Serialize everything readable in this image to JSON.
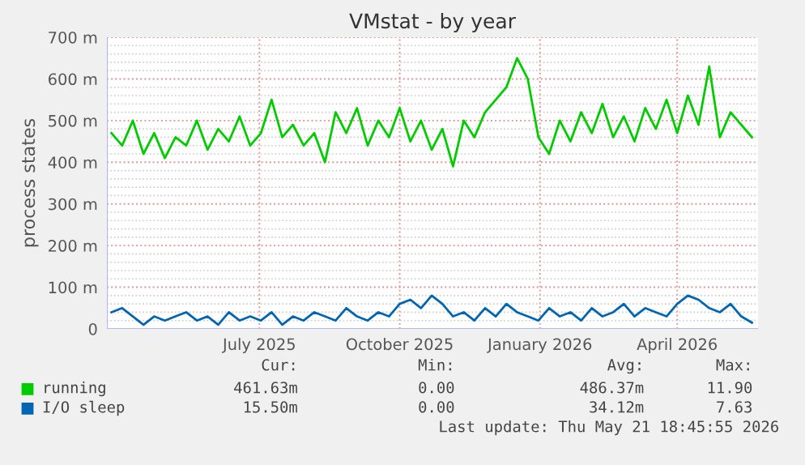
{
  "chart_data": {
    "type": "line",
    "title": "VMstat - by year",
    "ylabel": "process states",
    "xlim": [
      "2025-03-23",
      "2026-05-24"
    ],
    "xticks": [
      {
        "value": "2025-07-01",
        "label": "July 2025"
      },
      {
        "value": "2025-10-01",
        "label": "October 2025"
      },
      {
        "value": "2026-01-01",
        "label": "January 2026"
      },
      {
        "value": "2026-04-01",
        "label": "April 2026"
      }
    ],
    "ylim": [
      0,
      700
    ],
    "yticks": [
      0,
      {
        "value": 100,
        "label": "100 m"
      },
      {
        "value": 200,
        "label": "200 m"
      },
      {
        "value": 300,
        "label": "300 m"
      },
      {
        "value": 400,
        "label": "400 m"
      },
      {
        "value": 500,
        "label": "500 m"
      },
      {
        "value": 600,
        "label": "600 m"
      },
      {
        "value": 700,
        "label": "700 m"
      }
    ],
    "grid": true,
    "legend": "bottom",
    "marker": "none",
    "line_style": "solid",
    "x": [
      "2025-03-26",
      "2025-04-02",
      "2025-04-09",
      "2025-04-16",
      "2025-04-23",
      "2025-04-30",
      "2025-05-07",
      "2025-05-14",
      "2025-05-21",
      "2025-05-28",
      "2025-06-04",
      "2025-06-11",
      "2025-06-18",
      "2025-06-25",
      "2025-07-02",
      "2025-07-09",
      "2025-07-16",
      "2025-07-23",
      "2025-07-30",
      "2025-08-06",
      "2025-08-13",
      "2025-08-20",
      "2025-08-27",
      "2025-09-03",
      "2025-09-10",
      "2025-09-17",
      "2025-09-24",
      "2025-10-01",
      "2025-10-08",
      "2025-10-15",
      "2025-10-22",
      "2025-10-29",
      "2025-11-05",
      "2025-11-12",
      "2025-11-19",
      "2025-11-26",
      "2025-12-03",
      "2025-12-10",
      "2025-12-17",
      "2025-12-24",
      "2025-12-31",
      "2026-01-07",
      "2026-01-14",
      "2026-01-21",
      "2026-01-28",
      "2026-02-04",
      "2026-02-11",
      "2026-02-18",
      "2026-02-25",
      "2026-03-04",
      "2026-03-11",
      "2026-03-18",
      "2026-03-25",
      "2026-04-01",
      "2026-04-08",
      "2026-04-15",
      "2026-04-22",
      "2026-04-29",
      "2026-05-06",
      "2026-05-13",
      "2026-05-20"
    ],
    "series": [
      {
        "name": "running",
        "color": "#00cc00",
        "values": [
          470,
          440,
          500,
          420,
          470,
          410,
          460,
          440,
          500,
          430,
          480,
          450,
          510,
          440,
          470,
          550,
          460,
          490,
          440,
          470,
          400,
          520,
          470,
          530,
          440,
          500,
          460,
          530,
          450,
          500,
          430,
          480,
          390,
          500,
          460,
          520,
          550,
          580,
          650,
          600,
          460,
          420,
          500,
          450,
          520,
          470,
          540,
          460,
          510,
          450,
          530,
          480,
          550,
          470,
          560,
          490,
          630,
          460,
          520,
          490,
          460
        ]
      },
      {
        "name": "I/O sleep",
        "color": "#0066b3",
        "values": [
          40,
          50,
          30,
          10,
          30,
          20,
          30,
          40,
          20,
          30,
          10,
          40,
          20,
          30,
          20,
          40,
          10,
          30,
          20,
          40,
          30,
          20,
          50,
          30,
          20,
          40,
          30,
          60,
          70,
          50,
          80,
          60,
          30,
          40,
          20,
          50,
          30,
          60,
          40,
          30,
          20,
          50,
          30,
          40,
          20,
          50,
          30,
          40,
          60,
          30,
          50,
          40,
          30,
          60,
          80,
          70,
          50,
          40,
          60,
          30,
          15
        ]
      }
    ],
    "annotations": [
      "Cur:",
      "Min:",
      "Avg:",
      "Max:",
      "461.63m",
      "0.00",
      "486.37m",
      "11.90",
      "15.50m",
      "0.00",
      "34.12m",
      "7.63",
      "Last update: Thu May 21 18:45:55 2026"
    ]
  }
}
